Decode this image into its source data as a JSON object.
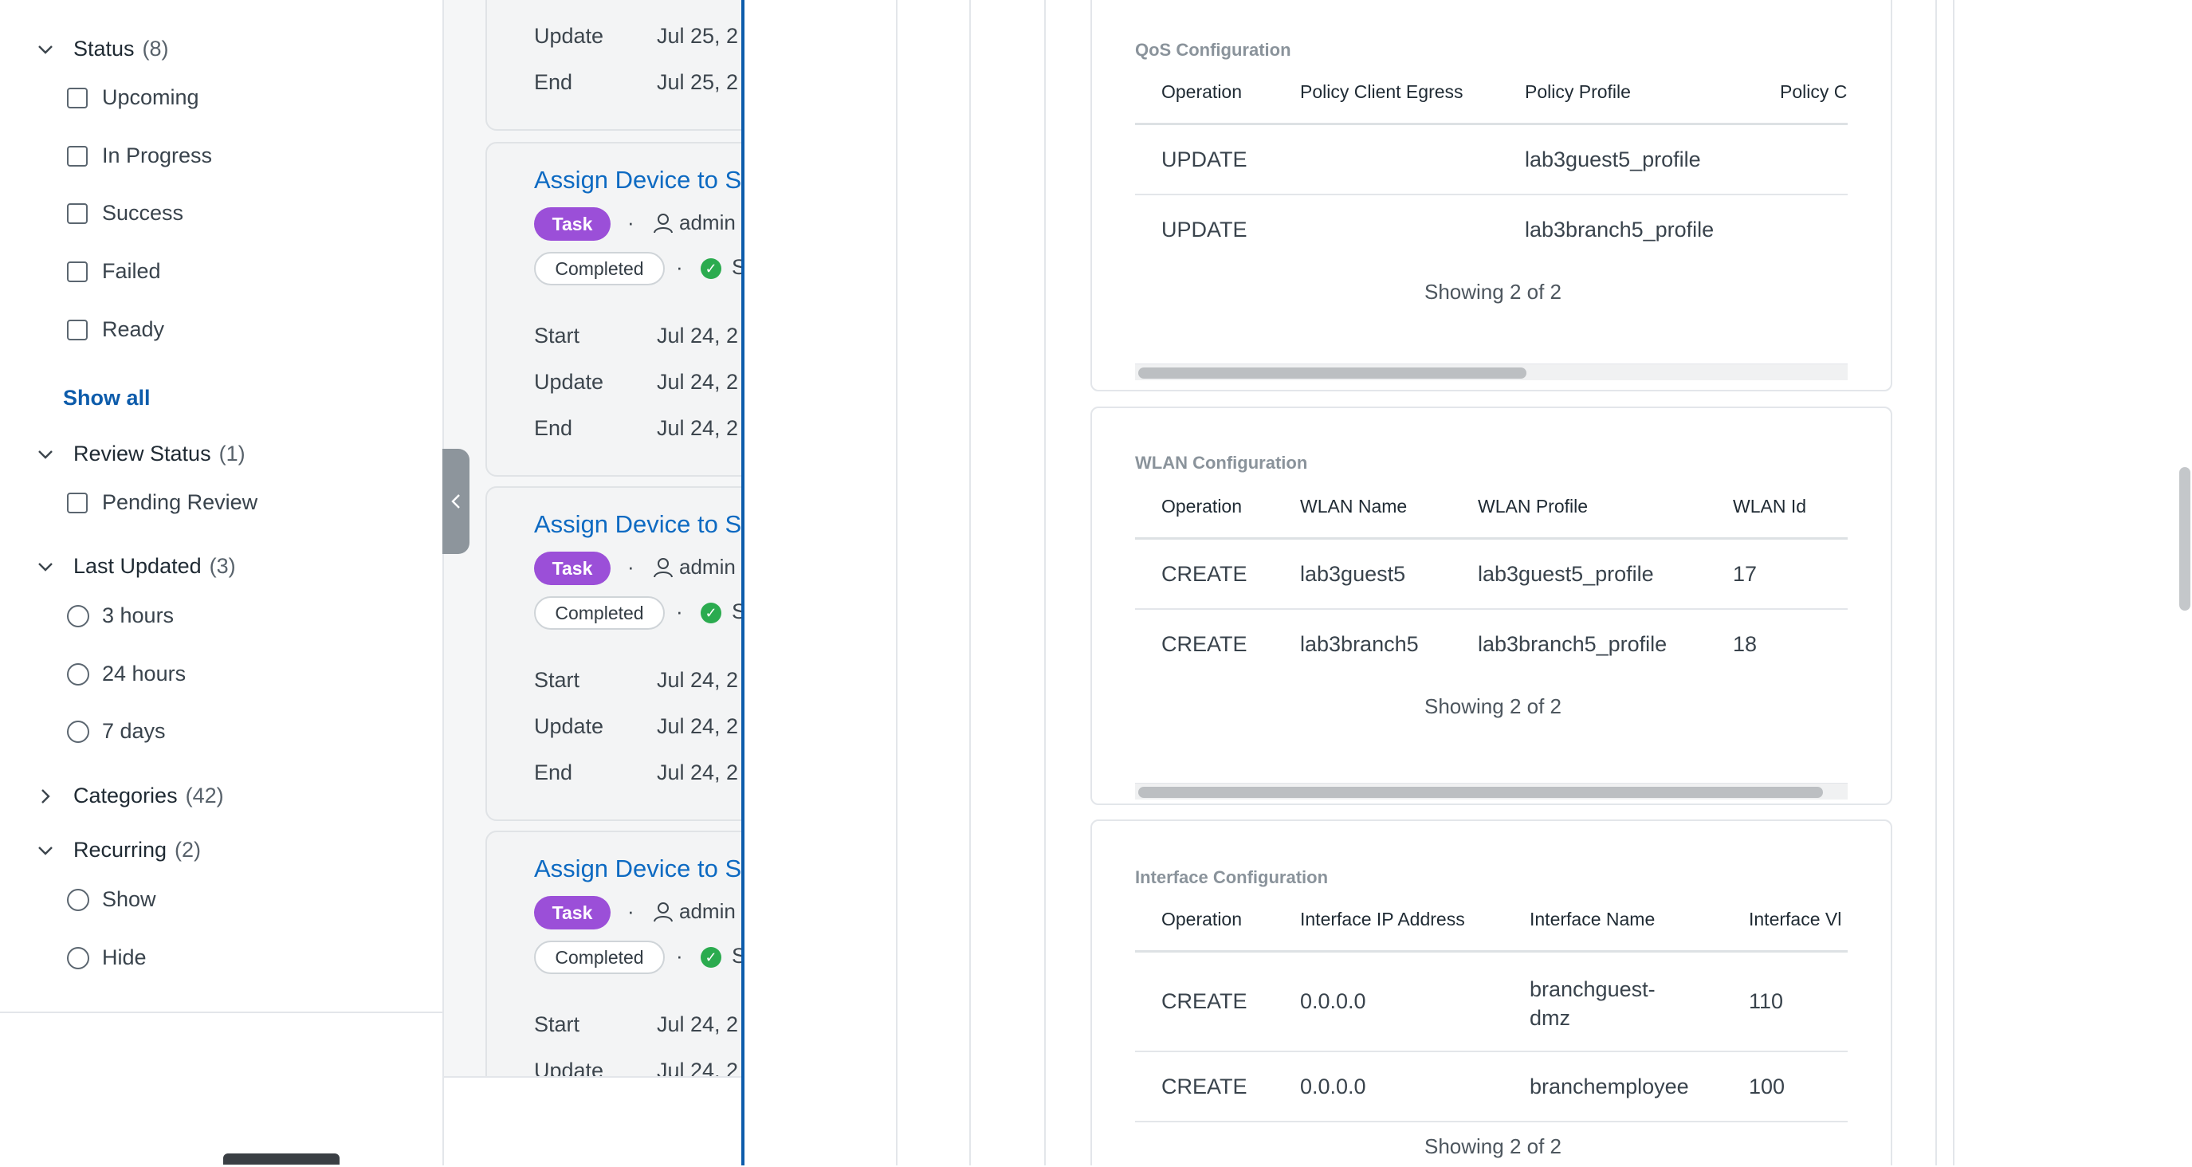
{
  "filters": {
    "status": {
      "label": "Status",
      "count": "(8)",
      "options": [
        "Upcoming",
        "In Progress",
        "Success",
        "Failed",
        "Ready"
      ],
      "show_all": "Show all"
    },
    "review_status": {
      "label": "Review Status",
      "count": "(1)",
      "options": [
        "Pending Review"
      ]
    },
    "last_updated": {
      "label": "Last Updated",
      "count": "(3)",
      "options": [
        "3 hours",
        "24 hours",
        "7 days"
      ]
    },
    "categories": {
      "label": "Categories",
      "count": "(42)"
    },
    "recurring": {
      "label": "Recurring",
      "count": "(2)",
      "options": [
        "Show",
        "Hide"
      ]
    }
  },
  "task_list": {
    "partial_card": {
      "update_label": "Update",
      "update_value": "Jul 25, 2",
      "end_label": "End",
      "end_value": "Jul 25, 2"
    },
    "cards": [
      {
        "title": "Assign Device to S",
        "type": "Task",
        "user": "admin",
        "status": "Completed",
        "result": "S",
        "start_label": "Start",
        "start_value": "Jul 24, 2",
        "update_label": "Update",
        "update_value": "Jul 24, 2",
        "end_label": "End",
        "end_value": "Jul 24, 2"
      },
      {
        "title": "Assign Device to S",
        "type": "Task",
        "user": "admin",
        "status": "Completed",
        "result": "S",
        "start_label": "Start",
        "start_value": "Jul 24, 2",
        "update_label": "Update",
        "update_value": "Jul 24, 2",
        "end_label": "End",
        "end_value": "Jul 24, 2"
      },
      {
        "title": "Assign Device to S",
        "type": "Task",
        "user": "admin",
        "status": "Completed",
        "result": "S",
        "start_label": "Start",
        "start_value": "Jul 24, 2",
        "update_label": "Update",
        "update_value": "Jul 24, 2"
      }
    ]
  },
  "drawer": {
    "qos": {
      "title": "QoS Configuration",
      "columns": [
        "Operation",
        "Policy Client Egress",
        "Policy Profile",
        "Policy C"
      ],
      "rows": [
        [
          "UPDATE",
          "",
          "lab3guest5_profile",
          ""
        ],
        [
          "UPDATE",
          "",
          "lab3branch5_profile",
          ""
        ]
      ],
      "showing": "Showing 2 of 2",
      "scroll_fraction": 0.55
    },
    "wlan": {
      "title": "WLAN Configuration",
      "columns": [
        "Operation",
        "WLAN Name",
        "WLAN Profile",
        "WLAN Id"
      ],
      "rows": [
        [
          "CREATE",
          "lab3guest5",
          "lab3guest5_profile",
          "17"
        ],
        [
          "CREATE",
          "lab3branch5",
          "lab3branch5_profile",
          "18"
        ]
      ],
      "showing": "Showing 2 of 2",
      "scroll_fraction": 0.97
    },
    "interface": {
      "title": "Interface Configuration",
      "columns": [
        "Operation",
        "Interface IP Address",
        "Interface Name",
        "Interface Vl"
      ],
      "rows": [
        [
          "CREATE",
          "0.0.0.0",
          "branchguest-\ndmz",
          "110"
        ],
        [
          "CREATE",
          "0.0.0.0",
          "branchemployee",
          "100"
        ]
      ],
      "showing": "Showing 2 of 2"
    }
  },
  "icons": {
    "expand": "chevron-down-icon",
    "collapsed": "chevron-right-icon",
    "user": "user-icon",
    "success": "check-circle-icon",
    "collapse_panel": "chevron-left-icon"
  },
  "colors": {
    "accent": "#0d5cab",
    "task_badge": "#9b4fd8",
    "success": "#2bab4f"
  }
}
